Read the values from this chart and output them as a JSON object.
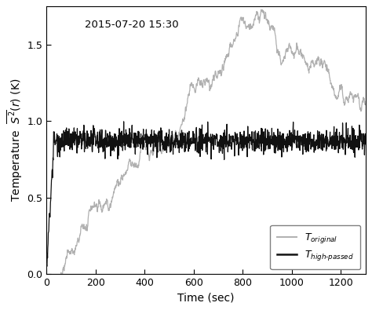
{
  "title": "2015-07-20 15:30",
  "xlabel": "Time (sec)",
  "ylabel": "Temperature  $\\overline{S^2}(r)$ (K)",
  "xlim": [
    0,
    1300
  ],
  "ylim": [
    0.0,
    1.75
  ],
  "yticks": [
    0.0,
    0.5,
    1.0,
    1.5
  ],
  "xticks": [
    0,
    200,
    400,
    600,
    800,
    1000,
    1200
  ],
  "color_original": "#b0b0b0",
  "color_highpassed": "#111111",
  "seed": 42,
  "n_points": 1300
}
